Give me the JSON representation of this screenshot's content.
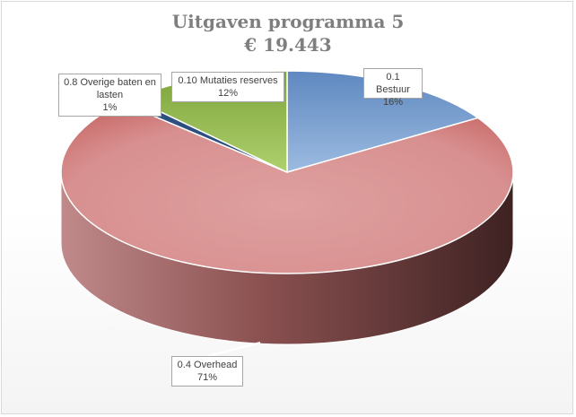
{
  "chart_data": {
    "type": "pie",
    "title": "Uitgaven programma 5",
    "subtitle": "€ 19.443",
    "legend": "none",
    "slices": [
      {
        "name": "0.1 Bestuur",
        "percent_label": "16%",
        "value": 16,
        "color": "#6f97c9"
      },
      {
        "name": "0.4 Overhead",
        "percent_label": "71%",
        "value": 71,
        "color": "#d98c8a"
      },
      {
        "name": "0.8 Overige baten en lasten",
        "percent_label": "1%",
        "value": 1,
        "color": "#2d4f80"
      },
      {
        "name": "0.10 Mutaties reserves",
        "percent_label": "12%",
        "value": 12,
        "color": "#93b352"
      }
    ]
  }
}
